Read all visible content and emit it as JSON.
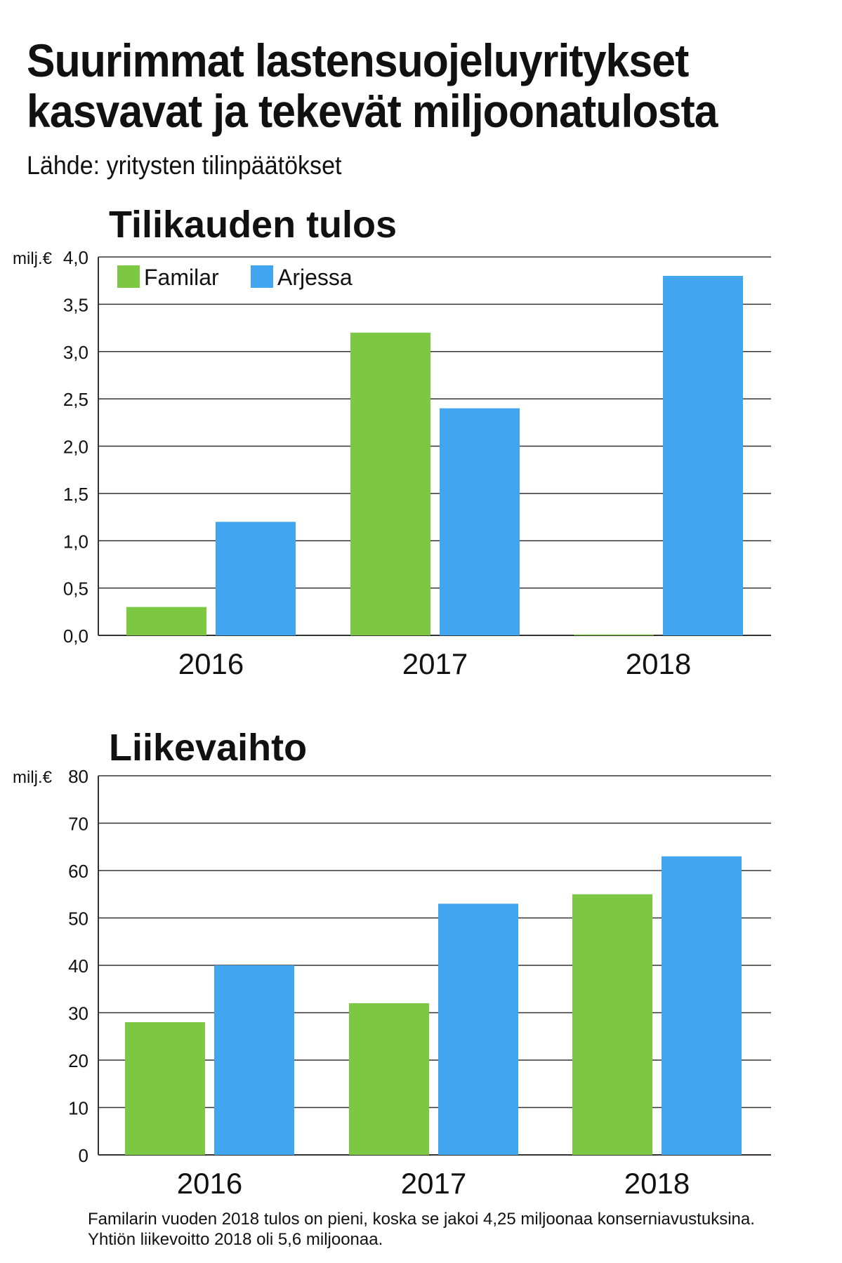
{
  "header": {
    "title_line1": "Suurimmat lastensuojeluyritykset",
    "title_line2": "kasvavat ja tekevät miljoonatulosta",
    "source": "Lähde: yritysten tilinpäätökset"
  },
  "colors": {
    "Familar": "#7dc842",
    "Arjessa": "#42a5ef"
  },
  "chart_data": [
    {
      "type": "bar",
      "title": "Tilikauden tulos",
      "ylabel": "milj.€",
      "categories": [
        "2016",
        "2017",
        "2018"
      ],
      "series": [
        {
          "name": "Familar",
          "values": [
            0.3,
            3.2,
            0.01
          ]
        },
        {
          "name": "Arjessa",
          "values": [
            1.2,
            2.4,
            3.8
          ]
        }
      ],
      "ylim": [
        0,
        4
      ],
      "yticks": [
        "0,0",
        "0,5",
        "1,0",
        "1,5",
        "2,0",
        "2,5",
        "3,0",
        "3,5",
        "4,0"
      ],
      "legend": "top-left",
      "grid": true
    },
    {
      "type": "bar",
      "title": "Liikevaihto",
      "ylabel": "milj.€",
      "categories": [
        "2016",
        "2017",
        "2018"
      ],
      "series": [
        {
          "name": "Familar",
          "values": [
            28,
            32,
            55
          ]
        },
        {
          "name": "Arjessa",
          "values": [
            40,
            53,
            63
          ]
        }
      ],
      "ylim": [
        0,
        80
      ],
      "yticks": [
        "0",
        "10",
        "20",
        "30",
        "40",
        "50",
        "60",
        "70",
        "80"
      ],
      "legend": "none",
      "grid": true
    }
  ],
  "footnote": {
    "line1": "Familarin vuoden 2018 tulos on pieni, koska se jakoi 4,25 miljoonaa konserniavustuksina.",
    "line2": "Yhtiön liikevoitto 2018 oli 5,6 miljoonaa."
  }
}
